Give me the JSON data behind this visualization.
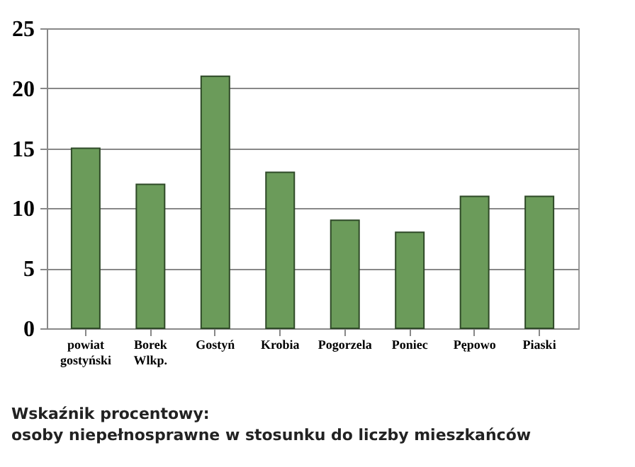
{
  "chart_data": {
    "type": "bar",
    "title": "Wskaźnik procentowy:",
    "subtitle": "osoby niepełnosprawne w stosunku do liczby mieszkańców",
    "categories": [
      "powiat gostyński",
      "Borek Wlkp.",
      "Gostyń",
      "Krobia",
      "Pogorzela",
      "Poniec",
      "Pępowo",
      "Piaski"
    ],
    "values": [
      15,
      12,
      21,
      13,
      9,
      8,
      11,
      11
    ],
    "color": "#6b9b5a",
    "ylim": [
      0,
      25
    ],
    "yticks": [
      0,
      5,
      10,
      15,
      20,
      25
    ],
    "grid": "y"
  }
}
